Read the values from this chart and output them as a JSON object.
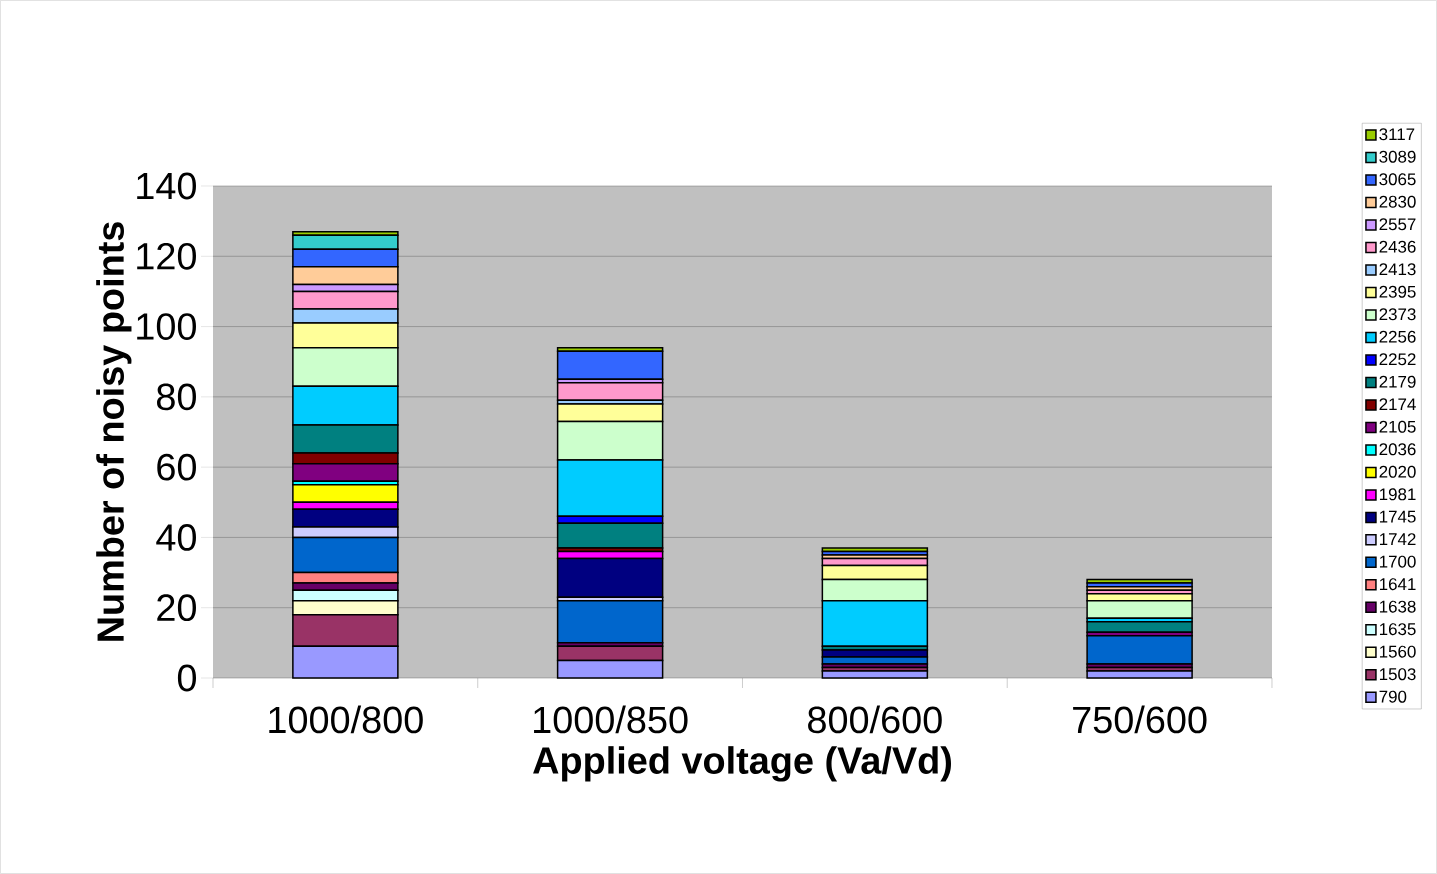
{
  "chart_data": {
    "type": "bar",
    "stacked": true,
    "xlabel": "Applied voltage (Va/Vd)",
    "ylabel": "Number of noisy points",
    "categories": [
      "1000/800",
      "1000/850",
      "800/600",
      "750/600"
    ],
    "ylim": [
      0,
      140
    ],
    "yticks": [
      0,
      20,
      40,
      60,
      80,
      100,
      120,
      140
    ],
    "grid": "y",
    "legend": "right",
    "series": [
      {
        "name": "790",
        "color": "#9999ff",
        "values": [
          9,
          5,
          2,
          2
        ]
      },
      {
        "name": "1503",
        "color": "#993366",
        "values": [
          9,
          4,
          1,
          1
        ]
      },
      {
        "name": "1560",
        "color": "#ffffcc",
        "values": [
          4,
          0,
          0,
          0
        ]
      },
      {
        "name": "1635",
        "color": "#ccffff",
        "values": [
          3,
          0,
          0,
          0
        ]
      },
      {
        "name": "1638",
        "color": "#660066",
        "values": [
          2,
          1,
          1,
          1
        ]
      },
      {
        "name": "1641",
        "color": "#ff8080",
        "values": [
          3,
          0,
          0,
          0
        ]
      },
      {
        "name": "1700",
        "color": "#0066cc",
        "values": [
          10,
          12,
          2,
          8
        ]
      },
      {
        "name": "1742",
        "color": "#ccccff",
        "values": [
          3,
          1,
          0,
          0
        ]
      },
      {
        "name": "1745",
        "color": "#000080",
        "values": [
          5,
          11,
          2,
          0
        ]
      },
      {
        "name": "1981",
        "color": "#ff00ff",
        "values": [
          2,
          2,
          0,
          0
        ]
      },
      {
        "name": "2020",
        "color": "#ffff00",
        "values": [
          5,
          0,
          0,
          0
        ]
      },
      {
        "name": "2036",
        "color": "#00ffff",
        "values": [
          1,
          0,
          0,
          0
        ]
      },
      {
        "name": "2105",
        "color": "#800080",
        "values": [
          5,
          0,
          0,
          1
        ]
      },
      {
        "name": "2174",
        "color": "#800000",
        "values": [
          3,
          1,
          0,
          0
        ]
      },
      {
        "name": "2179",
        "color": "#008080",
        "values": [
          8,
          7,
          1,
          3
        ]
      },
      {
        "name": "2252",
        "color": "#0000ff",
        "values": [
          0,
          2,
          0,
          0
        ]
      },
      {
        "name": "2256",
        "color": "#00ccff",
        "values": [
          11,
          16,
          13,
          1
        ]
      },
      {
        "name": "2373",
        "color": "#ccffcc",
        "values": [
          11,
          11,
          6,
          5
        ]
      },
      {
        "name": "2395",
        "color": "#ffff99",
        "values": [
          7,
          5,
          4,
          2
        ]
      },
      {
        "name": "2413",
        "color": "#99ccff",
        "values": [
          4,
          1,
          0,
          0
        ]
      },
      {
        "name": "2436",
        "color": "#ff99cc",
        "values": [
          5,
          5,
          2,
          1
        ]
      },
      {
        "name": "2557",
        "color": "#cc99ff",
        "values": [
          2,
          1,
          0,
          0
        ]
      },
      {
        "name": "2830",
        "color": "#ffcc99",
        "values": [
          5,
          0,
          1,
          1
        ]
      },
      {
        "name": "3065",
        "color": "#3366ff",
        "values": [
          5,
          8,
          1,
          1
        ]
      },
      {
        "name": "3089",
        "color": "#33cccc",
        "values": [
          4,
          0,
          0,
          0
        ]
      },
      {
        "name": "3117",
        "color": "#99cc00",
        "values": [
          1,
          1,
          1,
          1
        ]
      }
    ]
  }
}
